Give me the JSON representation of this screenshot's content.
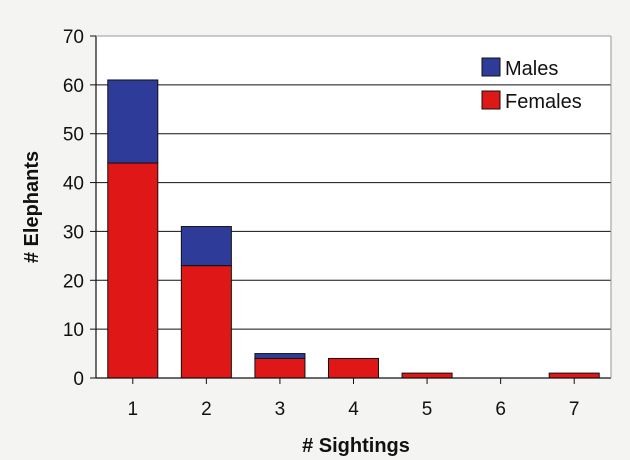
{
  "chart_data": {
    "type": "bar",
    "stacked": true,
    "categories": [
      "1",
      "2",
      "3",
      "4",
      "5",
      "6",
      "7"
    ],
    "series": [
      {
        "name": "Females",
        "values": [
          44,
          23,
          4,
          4,
          1,
          0,
          1
        ],
        "color": "#e01717"
      },
      {
        "name": "Males",
        "values": [
          17,
          8,
          1,
          0,
          0,
          0,
          0
        ],
        "color": "#2f3b98"
      }
    ],
    "xlabel": "# Sightings",
    "ylabel": "# Elephants",
    "ylim": [
      0,
      70
    ],
    "yticks": [
      "0",
      "10",
      "20",
      "30",
      "40",
      "50",
      "60",
      "70"
    ],
    "grid": true,
    "legend": {
      "position": "top-right",
      "entries": [
        "Males",
        "Females"
      ]
    }
  }
}
